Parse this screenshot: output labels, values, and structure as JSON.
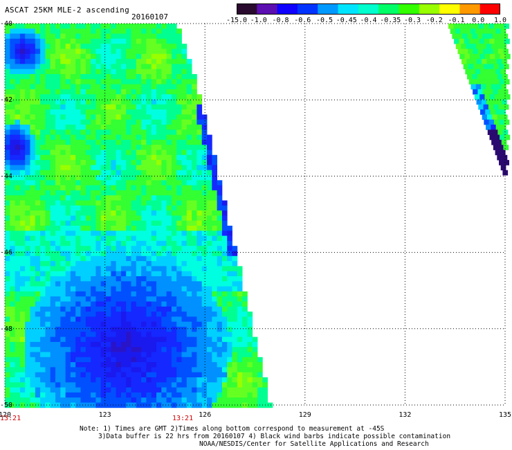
{
  "header": {
    "title": "ASCAT 25KM MLE-2 ascending",
    "date": "20160107"
  },
  "colorbar": {
    "labels": [
      "-15.0",
      "-1.0",
      "-0.8",
      "-0.6",
      "-0.5",
      "-0.45",
      "-0.4",
      "-0.35",
      "-0.3",
      "-0.2",
      "-0.1",
      "0.0",
      "1.0"
    ],
    "colors": [
      "#2a0a2e",
      "#5b0fb0",
      "#1000ff",
      "#0033ff",
      "#0099ff",
      "#00e5ff",
      "#00ffcc",
      "#00ff66",
      "#33ff00",
      "#99ff00",
      "#ffff00",
      "#ff9900",
      "#ff0000"
    ]
  },
  "axes": {
    "lon_labels": [
      "120",
      "123",
      "126",
      "129",
      "132",
      "135"
    ],
    "lat_labels": [
      "-40",
      "-42",
      "-44",
      "-46",
      "-48",
      "-50"
    ],
    "lon_range": [
      120,
      135
    ],
    "lat_range": [
      -50,
      -40
    ]
  },
  "times": {
    "left": "13:21",
    "middle": "13:21"
  },
  "note": {
    "line1": "Note: 1) Times are GMT 2)Times along bottom correspond to measurement at -45S",
    "line2": "3)Data buffer is 22 hrs from 20160107 4) Black wind barbs indicate possible contamination",
    "line3": "NOAA/NESDIS/Center for Satellite Applications and Research"
  },
  "legend_colors": {
    "dark_purple": "#3a0a6e",
    "blue": "#1414e6",
    "cyan": "#00ffff",
    "green": "#33ff33",
    "yellow_green": "#99ff00"
  }
}
